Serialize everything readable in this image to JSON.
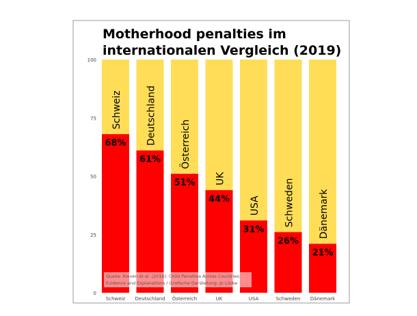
{
  "chart_data": {
    "type": "bar",
    "title_lines": [
      "Motherhood penalties im",
      "internationalen Vergleich (2019)"
    ],
    "categories": [
      "Schweiz",
      "Deutschland",
      "Österreich",
      "UK",
      "USA",
      "Schweden",
      "Dänemark"
    ],
    "values": [
      68,
      61,
      51,
      44,
      31,
      26,
      21
    ],
    "value_labels": [
      "68%",
      "61%",
      "51%",
      "44%",
      "31%",
      "26%",
      "21%"
    ],
    "ylim": [
      0,
      100
    ],
    "yticks": [
      0,
      25,
      50,
      75,
      100
    ],
    "ytick_labels": [
      "0",
      "25",
      "50",
      "75",
      "100"
    ],
    "grid": false,
    "source_lines": [
      "Quelle: Kleven et al. (2019): Child Penalties Across Countries:",
      "Evidence and Explanations / Grafische Darstellung: Jo Lücke"
    ],
    "colors": {
      "value": "#ff0000",
      "remainder": "#ffdd57",
      "frame": "#999999",
      "text": "#000000",
      "tick_text": "#444444"
    }
  }
}
